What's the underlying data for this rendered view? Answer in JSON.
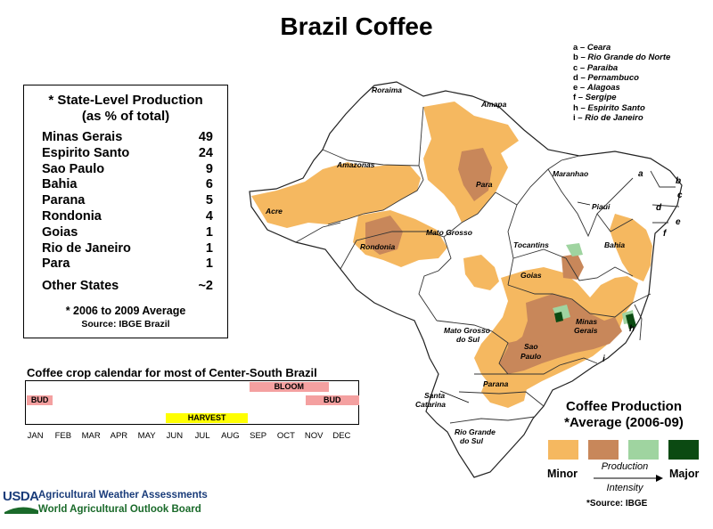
{
  "title": "Brazil Coffee",
  "production": {
    "heading_line1": "* State-Level Production",
    "heading_line2": "(as % of total)",
    "states": [
      {
        "name": "Minas Gerais",
        "value": "49"
      },
      {
        "name": "Espirito Santo",
        "value": "24"
      },
      {
        "name": "Sao Paulo",
        "value": "9"
      },
      {
        "name": "Bahia",
        "value": "6"
      },
      {
        "name": "Parana",
        "value": "5"
      },
      {
        "name": "Rondonia",
        "value": "4"
      },
      {
        "name": "Goias",
        "value": "1"
      },
      {
        "name": "Rio de Janeiro",
        "value": "1"
      },
      {
        "name": "Para",
        "value": "1"
      }
    ],
    "other": {
      "name": "Other States",
      "value": "~2"
    },
    "note": "* 2006 to 2009 Average",
    "source": "Source: IBGE Brazil"
  },
  "calendar": {
    "title": "Coffee crop calendar for most of Center-South Brazil",
    "months": [
      "JAN",
      "FEB",
      "MAR",
      "APR",
      "MAY",
      "JUN",
      "JUL",
      "AUG",
      "SEP",
      "OCT",
      "NOV",
      "DEC"
    ],
    "bars": [
      {
        "label": "BLOOM",
        "start": 8,
        "end": 10.9,
        "row": 0,
        "color": "#f4a0a0"
      },
      {
        "label": "BUD",
        "start": 0,
        "end": 1,
        "row": 1,
        "color": "#f4a0a0"
      },
      {
        "label": "BUD",
        "start": 10,
        "end": 12,
        "row": 1,
        "color": "#f4a0a0"
      },
      {
        "label": "HARVEST",
        "start": 5,
        "end": 8,
        "row": 2,
        "color": "#ffff00"
      }
    ]
  },
  "key": [
    {
      "letter": "a",
      "name": "Ceara"
    },
    {
      "letter": "b",
      "name": "Rio Grande do Norte"
    },
    {
      "letter": "c",
      "name": "Paraiba"
    },
    {
      "letter": "d",
      "name": "Pernambuco"
    },
    {
      "letter": "e",
      "name": "Alagoas"
    },
    {
      "letter": "f",
      "name": "Sergipe"
    },
    {
      "letter": "h",
      "name": "Espirito Santo"
    },
    {
      "letter": "i",
      "name": "Rio de Janeiro"
    }
  ],
  "map_labels": {
    "roraima": "Roraima",
    "amapa": "Amapa",
    "amazonas": "Amazonas",
    "para": "Para",
    "maranhao": "Maranhao",
    "piaui": "Piaui",
    "acre": "Acre",
    "rondonia": "Rondonia",
    "mato_grosso": "Mato Grosso",
    "tocantins": "Tocantins",
    "bahia": "Bahia",
    "goias": "Goias",
    "minas_gerais_1": "Minas",
    "minas_gerais_2": "Gerais",
    "mato_grosso_do_sul_1": "Mato Grosso",
    "mato_grosso_do_sul_2": "do Sul",
    "sao_paulo_1": "Sao",
    "sao_paulo_2": "Paulo",
    "parana": "Parana",
    "santa_catarina_1": "Santa",
    "santa_catarina_2": "Catarina",
    "rio_grande_do_sul_1": "Rio Grande",
    "rio_grande_do_sul_2": "do Sul",
    "letter_a": "a",
    "letter_b": "b",
    "letter_c": "c",
    "letter_d": "d",
    "letter_e": "e",
    "letter_f": "f",
    "letter_h": "h",
    "letter_i": "i"
  },
  "legend": {
    "title_line1": "Coffee Production",
    "title_line2": "*Average (2006-09)",
    "swatches": [
      "#f5b860",
      "#c8875a",
      "#9fd4a0",
      "#0b4a12"
    ],
    "minor": "Minor",
    "major": "Major",
    "intensity_line1": "Production",
    "intensity_line2": "Intensity",
    "source": "*Source: IBGE"
  },
  "footer": {
    "logo": "USDA",
    "line1": "Agricultural Weather Assessments",
    "line2": "World Agricultural Outlook Board"
  }
}
